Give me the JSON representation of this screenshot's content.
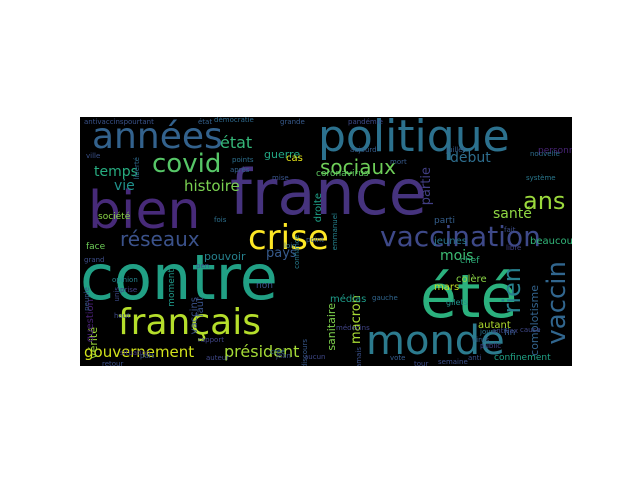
{
  "words": [
    {
      "text": "été",
      "color": "#2bb17e"
    },
    {
      "text": "contre",
      "color": "#21a085"
    },
    {
      "text": "france",
      "color": "#46337e"
    },
    {
      "text": "bien",
      "color": "#472a79"
    },
    {
      "text": "politique",
      "color": "#2c718e"
    },
    {
      "text": "années",
      "color": "#33628d"
    },
    {
      "text": "français",
      "color": "#b5de2b"
    },
    {
      "text": "monde",
      "color": "#2c7b8e"
    },
    {
      "text": "crise",
      "color": "#fde725"
    },
    {
      "text": "vaccination",
      "color": "#3e4989"
    },
    {
      "text": "covid",
      "color": "#56c667"
    },
    {
      "text": "vaccin",
      "color": "#31668e"
    },
    {
      "text": "rien",
      "color": "#27808e"
    },
    {
      "text": "ans",
      "color": "#9bd93c"
    },
    {
      "text": "état",
      "color": "#35b779"
    },
    {
      "text": "sociaux",
      "color": "#6ece58"
    },
    {
      "text": "réseaux",
      "color": "#3b528b"
    },
    {
      "text": "temps",
      "color": "#27ad81"
    },
    {
      "text": "histoire",
      "color": "#7ad151"
    },
    {
      "text": "gouvernement",
      "color": "#d2e21b"
    },
    {
      "text": "président",
      "color": "#a5db36"
    },
    {
      "text": "début",
      "color": "#2e6e8e"
    },
    {
      "text": "santé",
      "color": "#90d743"
    },
    {
      "text": "mois",
      "color": "#3dbc74"
    },
    {
      "text": "partie",
      "color": "#423f85"
    },
    {
      "text": "guerre",
      "color": "#22a884"
    },
    {
      "text": "vie",
      "color": "#20928c"
    },
    {
      "text": "pays",
      "color": "#375b8d"
    },
    {
      "text": "macron",
      "color": "#a8db34"
    },
    {
      "text": "pouvoir",
      "color": "#26818e"
    },
    {
      "text": "moment",
      "color": "#1f9a8a"
    },
    {
      "text": "jeunes",
      "color": "#2a788e"
    },
    {
      "text": "sanitaire",
      "color": "#7fd34e"
    },
    {
      "text": "complotisme",
      "color": "#33638d"
    },
    {
      "text": "confinement",
      "color": "#20a386"
    },
    {
      "text": "vaccins",
      "color": "#3b528b"
    },
    {
      "text": "colère",
      "color": "#8bd646"
    },
    {
      "text": "médias",
      "color": "#1e9c89"
    },
    {
      "text": "autant",
      "color": "#b0dd2f"
    },
    {
      "text": "vérité",
      "color": "#9dd93b"
    },
    {
      "text": "question",
      "color": "#482173"
    },
    {
      "text": "faut",
      "color": "#3a548c"
    },
    {
      "text": "mars",
      "color": "#c0df25"
    },
    {
      "text": "chef",
      "color": "#2eb37c"
    },
    {
      "text": "droite",
      "color": "#1fa187"
    },
    {
      "text": "beaucoup",
      "color": "#32b67a"
    },
    {
      "text": "face",
      "color": "#6ece58"
    },
    {
      "text": "cas",
      "color": "#e5e419"
    },
    {
      "text": "coronavirus",
      "color": "#5ec962"
    },
    {
      "text": "société",
      "color": "#8bd646"
    },
    {
      "text": "parti",
      "color": "#355f8d"
    },
    {
      "text": "personnes",
      "color": "#482475"
    },
    {
      "text": "fin",
      "color": "#355f8d"
    },
    {
      "text": "non",
      "color": "#3b528b"
    },
    {
      "text": "grand",
      "color": "#3d4e8a"
    },
    {
      "text": "opinion",
      "color": "#25848e"
    },
    {
      "text": "situation",
      "color": "#443983"
    },
    {
      "text": "gilets",
      "color": "#21918c"
    },
    {
      "text": "public",
      "color": "#414487"
    },
    {
      "text": "jours",
      "color": "#2a768e"
    },
    {
      "text": "aucun",
      "color": "#3f4889"
    },
    {
      "text": "discours",
      "color": "#38598c"
    },
    {
      "text": "confiance",
      "color": "#287c8e"
    },
    {
      "text": "points",
      "color": "#2d708e"
    },
    {
      "text": "mise",
      "color": "#39558c"
    },
    {
      "text": "emmanuel",
      "color": "#26828e"
    },
    {
      "text": "démocratie",
      "color": "#2f6b8e"
    },
    {
      "text": "grande",
      "color": "#375a8c"
    },
    {
      "text": "pandémie",
      "color": "#3e4a89"
    },
    {
      "text": "antivaccinspourtant",
      "color": "#3a538b"
    },
    {
      "text": "état",
      "color": "#34618d"
    },
    {
      "text": "système",
      "color": "#2a788e"
    },
    {
      "text": "ville",
      "color": "#3b528b"
    },
    {
      "text": "prise",
      "color": "#424186"
    },
    {
      "text": "antivax",
      "color": "#3f4788"
    },
    {
      "text": "virus",
      "color": "#33638d"
    },
    {
      "text": "unis",
      "color": "#3d4d8a"
    },
    {
      "text": "tour",
      "color": "#3e4c8a"
    },
    {
      "text": "jean",
      "color": "#3c4f8a"
    },
    {
      "text": "créé",
      "color": "#32648e"
    },
    {
      "text": "point",
      "color": "#38598c"
    },
    {
      "text": "aujourd",
      "color": "#365d8d"
    },
    {
      "text": "jamais",
      "color": "#3b518b"
    },
    {
      "text": "auteur",
      "color": "#3f4889"
    },
    {
      "text": "vote",
      "color": "#365c8d"
    },
    {
      "text": "retour",
      "color": "#3c508b"
    },
    {
      "text": "après",
      "color": "#33638d"
    },
    {
      "text": "pen",
      "color": "#39568c"
    },
    {
      "text": "loin",
      "color": "#2f6c8e"
    },
    {
      "text": "haut",
      "color": "#3e4a89"
    },
    {
      "text": "fois",
      "color": "#2d708e"
    },
    {
      "text": "semaine",
      "color": "#3c4f8a"
    },
    {
      "text": "part",
      "color": "#3a548c"
    },
    {
      "text": "rapport",
      "color": "#404688"
    },
    {
      "text": "cause",
      "color": "#3f4889"
    },
    {
      "text": "libre",
      "color": "#424186"
    },
    {
      "text": "peuple",
      "color": "#38588c"
    },
    {
      "text": "nouvelle",
      "color": "#2e6d8e"
    },
    {
      "text": "anti",
      "color": "#3b528b"
    },
    {
      "text": "juillet",
      "color": "#355e8d"
    },
    {
      "text": "médecins",
      "color": "#414487"
    },
    {
      "text": "gauche",
      "color": "#31668e"
    },
    {
      "text": "fait",
      "color": "#3d4e8a"
    },
    {
      "text": "mort",
      "color": "#375b8d"
    },
    {
      "text": "liberté",
      "color": "#2f6b8e"
    }
  ]
}
